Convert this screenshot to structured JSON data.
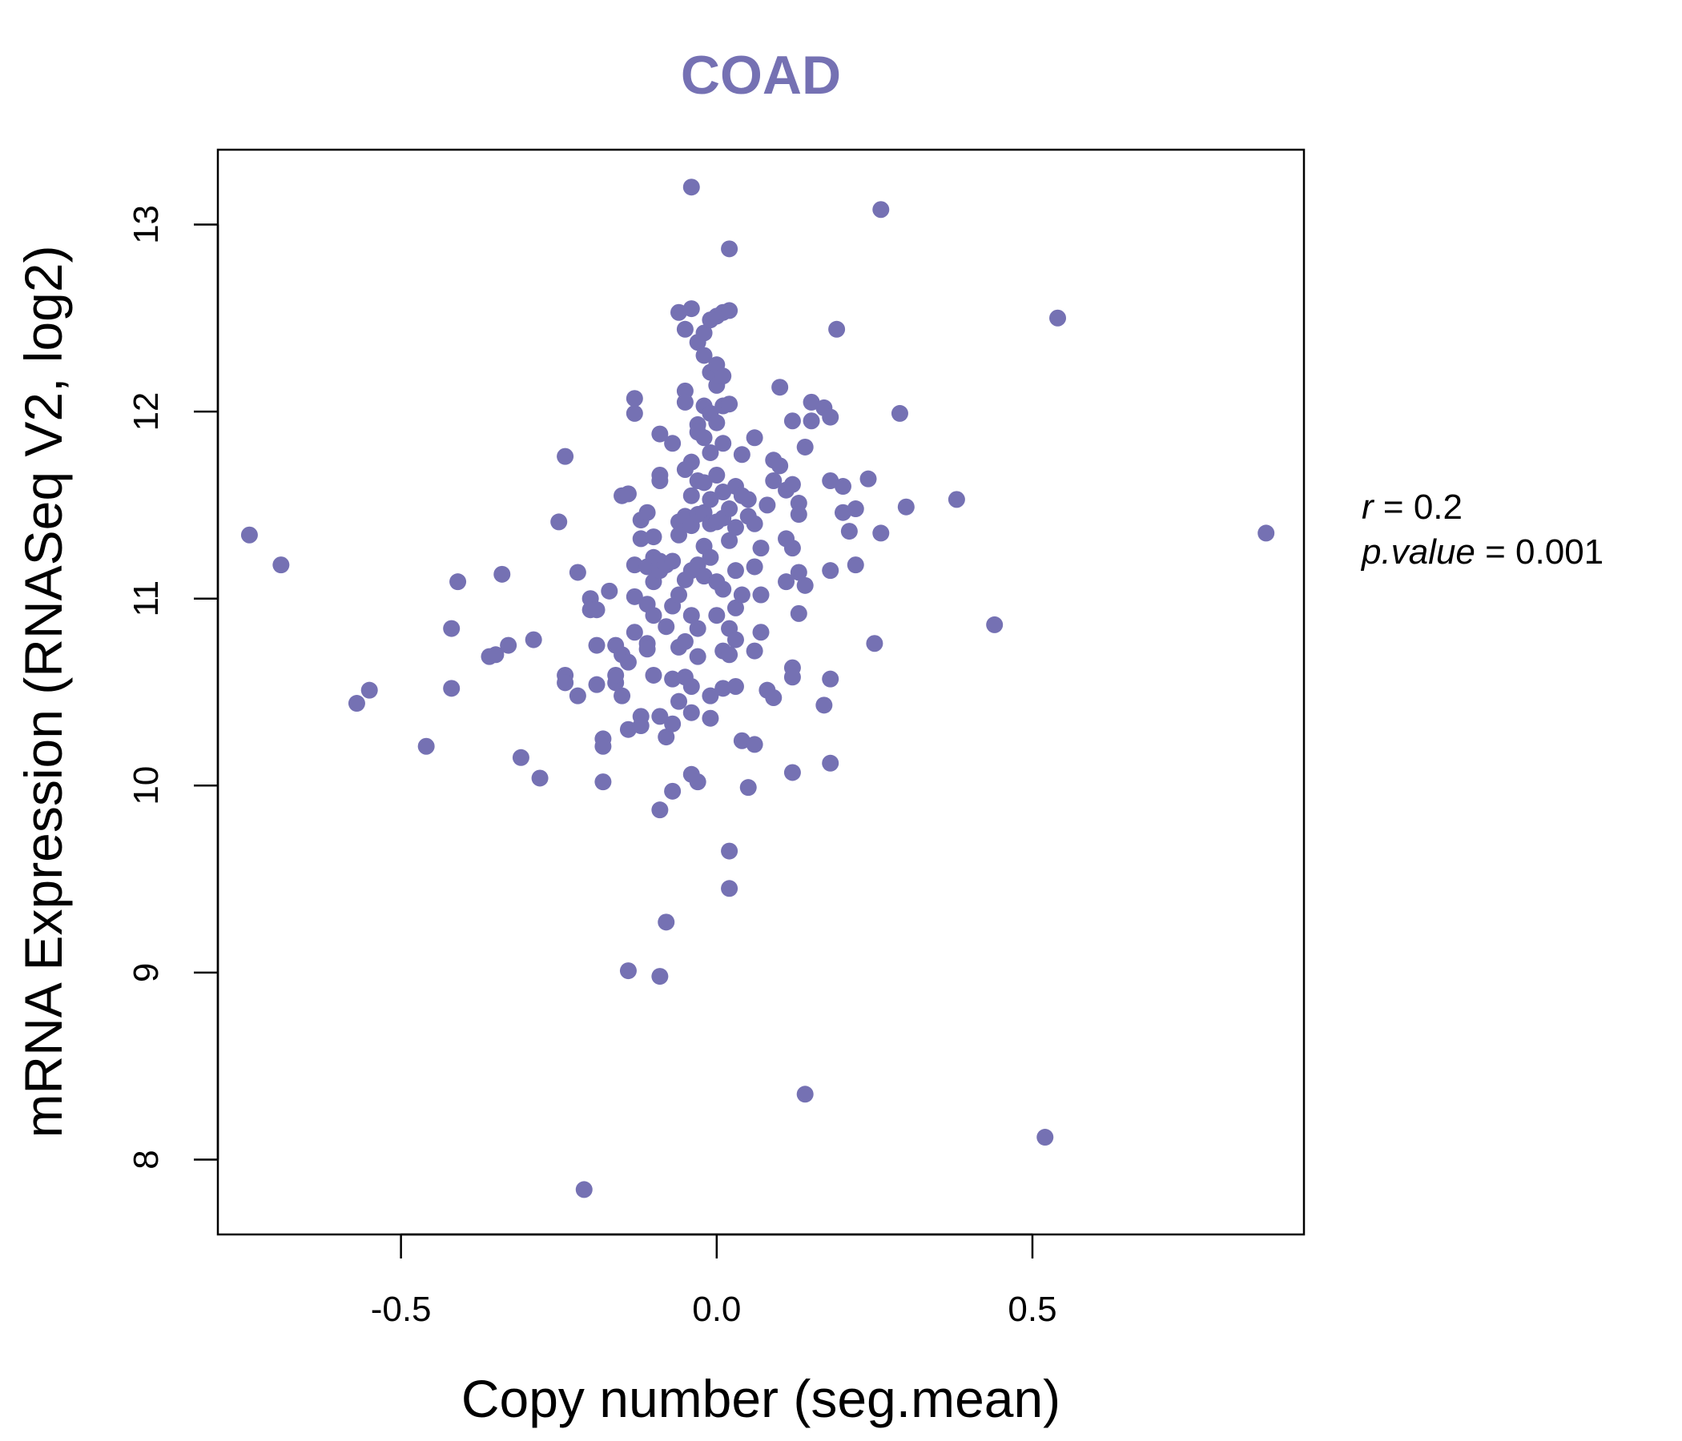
{
  "colors": {
    "point": "#7571B3",
    "title": "#7571B3",
    "axis": "#000000",
    "text": "#000000"
  },
  "chart_data": {
    "type": "scatter",
    "title": "COAD",
    "xlabel": "Copy number (seg.mean)",
    "ylabel": "mRNA Expression (RNASeq V2, log2)",
    "xlim": [
      -0.79,
      0.93
    ],
    "ylim": [
      7.6,
      13.4
    ],
    "xticks": [
      -0.5,
      0.0,
      0.5
    ],
    "xtick_labels": [
      "-0.5",
      "0.0",
      "0.5"
    ],
    "yticks": [
      8,
      9,
      10,
      11,
      12,
      13
    ],
    "ytick_labels": [
      "8",
      "9",
      "10",
      "11",
      "12",
      "13"
    ],
    "stats": {
      "r_label": "r",
      "r_value": "0.2",
      "p_label": "p.value",
      "p_value": "0.001"
    },
    "points": [
      [
        -0.74,
        11.34
      ],
      [
        -0.69,
        11.18
      ],
      [
        -0.57,
        10.44
      ],
      [
        -0.55,
        10.51
      ],
      [
        -0.46,
        10.21
      ],
      [
        -0.42,
        10.52
      ],
      [
        -0.42,
        10.84
      ],
      [
        -0.41,
        11.09
      ],
      [
        -0.36,
        10.69
      ],
      [
        -0.35,
        10.7
      ],
      [
        -0.34,
        11.13
      ],
      [
        -0.33,
        10.75
      ],
      [
        -0.31,
        10.15
      ],
      [
        -0.29,
        10.78
      ],
      [
        -0.28,
        10.04
      ],
      [
        -0.25,
        11.41
      ],
      [
        -0.24,
        11.76
      ],
      [
        -0.24,
        10.59
      ],
      [
        -0.24,
        10.55
      ],
      [
        -0.22,
        11.14
      ],
      [
        -0.22,
        10.48
      ],
      [
        -0.21,
        7.84
      ],
      [
        -0.2,
        11.0
      ],
      [
        -0.2,
        10.94
      ],
      [
        -0.19,
        10.94
      ],
      [
        -0.19,
        10.75
      ],
      [
        -0.19,
        10.54
      ],
      [
        -0.18,
        10.25
      ],
      [
        -0.18,
        10.21
      ],
      [
        -0.18,
        10.02
      ],
      [
        -0.17,
        11.04
      ],
      [
        -0.16,
        10.75
      ],
      [
        -0.16,
        10.55
      ],
      [
        -0.16,
        10.59
      ],
      [
        -0.15,
        11.55
      ],
      [
        -0.15,
        10.7
      ],
      [
        -0.15,
        10.48
      ],
      [
        -0.14,
        11.56
      ],
      [
        -0.14,
        10.66
      ],
      [
        -0.14,
        10.3
      ],
      [
        -0.14,
        9.01
      ],
      [
        -0.13,
        12.07
      ],
      [
        -0.13,
        11.99
      ],
      [
        -0.13,
        11.18
      ],
      [
        -0.13,
        11.01
      ],
      [
        -0.13,
        10.82
      ],
      [
        -0.12,
        11.42
      ],
      [
        -0.12,
        11.32
      ],
      [
        -0.12,
        10.37
      ],
      [
        -0.12,
        10.32
      ],
      [
        -0.11,
        11.46
      ],
      [
        -0.11,
        11.17
      ],
      [
        -0.11,
        10.97
      ],
      [
        -0.11,
        10.76
      ],
      [
        -0.11,
        10.73
      ],
      [
        -0.1,
        11.33
      ],
      [
        -0.1,
        11.22
      ],
      [
        -0.1,
        11.09
      ],
      [
        -0.1,
        10.91
      ],
      [
        -0.1,
        10.59
      ],
      [
        -0.09,
        11.88
      ],
      [
        -0.09,
        11.66
      ],
      [
        -0.09,
        11.63
      ],
      [
        -0.09,
        11.2
      ],
      [
        -0.09,
        11.15
      ],
      [
        -0.09,
        10.37
      ],
      [
        -0.09,
        9.87
      ],
      [
        -0.09,
        8.98
      ],
      [
        -0.08,
        11.18
      ],
      [
        -0.08,
        10.85
      ],
      [
        -0.08,
        10.26
      ],
      [
        -0.08,
        9.27
      ],
      [
        -0.07,
        11.83
      ],
      [
        -0.07,
        11.2
      ],
      [
        -0.07,
        10.96
      ],
      [
        -0.07,
        10.57
      ],
      [
        -0.07,
        10.33
      ],
      [
        -0.07,
        9.97
      ],
      [
        -0.06,
        12.53
      ],
      [
        -0.06,
        11.41
      ],
      [
        -0.06,
        11.34
      ],
      [
        -0.06,
        11.02
      ],
      [
        -0.06,
        10.74
      ],
      [
        -0.06,
        10.45
      ],
      [
        -0.05,
        12.44
      ],
      [
        -0.05,
        12.11
      ],
      [
        -0.05,
        12.05
      ],
      [
        -0.05,
        11.69
      ],
      [
        -0.05,
        11.44
      ],
      [
        -0.05,
        11.1
      ],
      [
        -0.05,
        10.77
      ],
      [
        -0.05,
        10.58
      ],
      [
        -0.04,
        12.55
      ],
      [
        -0.04,
        13.2
      ],
      [
        -0.04,
        11.73
      ],
      [
        -0.04,
        11.55
      ],
      [
        -0.04,
        11.39
      ],
      [
        -0.04,
        11.15
      ],
      [
        -0.04,
        10.91
      ],
      [
        -0.04,
        10.53
      ],
      [
        -0.04,
        10.39
      ],
      [
        -0.04,
        10.06
      ],
      [
        -0.03,
        12.37
      ],
      [
        -0.03,
        11.93
      ],
      [
        -0.03,
        11.89
      ],
      [
        -0.03,
        11.63
      ],
      [
        -0.03,
        11.45
      ],
      [
        -0.03,
        11.18
      ],
      [
        -0.03,
        10.84
      ],
      [
        -0.03,
        10.69
      ],
      [
        -0.03,
        10.02
      ],
      [
        -0.02,
        12.42
      ],
      [
        -0.02,
        12.3
      ],
      [
        -0.02,
        12.03
      ],
      [
        -0.02,
        11.86
      ],
      [
        -0.02,
        11.62
      ],
      [
        -0.02,
        11.46
      ],
      [
        -0.02,
        11.28
      ],
      [
        -0.02,
        11.12
      ],
      [
        -0.01,
        12.49
      ],
      [
        -0.01,
        12.21
      ],
      [
        -0.01,
        11.99
      ],
      [
        -0.01,
        11.78
      ],
      [
        -0.01,
        11.53
      ],
      [
        -0.01,
        11.4
      ],
      [
        -0.01,
        11.22
      ],
      [
        -0.01,
        10.48
      ],
      [
        -0.01,
        10.36
      ],
      [
        0.0,
        12.51
      ],
      [
        0.0,
        12.25
      ],
      [
        0.0,
        12.14
      ],
      [
        0.0,
        11.94
      ],
      [
        0.0,
        11.66
      ],
      [
        0.0,
        11.41
      ],
      [
        0.0,
        11.09
      ],
      [
        0.0,
        10.91
      ],
      [
        0.01,
        12.53
      ],
      [
        0.01,
        12.19
      ],
      [
        0.01,
        12.03
      ],
      [
        0.01,
        11.83
      ],
      [
        0.01,
        11.57
      ],
      [
        0.01,
        11.43
      ],
      [
        0.01,
        11.05
      ],
      [
        0.01,
        10.72
      ],
      [
        0.01,
        10.52
      ],
      [
        0.02,
        12.54
      ],
      [
        0.02,
        12.87
      ],
      [
        0.02,
        12.04
      ],
      [
        0.02,
        11.48
      ],
      [
        0.02,
        11.31
      ],
      [
        0.02,
        10.84
      ],
      [
        0.02,
        10.7
      ],
      [
        0.02,
        9.65
      ],
      [
        0.02,
        9.45
      ],
      [
        0.03,
        11.6
      ],
      [
        0.03,
        11.38
      ],
      [
        0.03,
        11.15
      ],
      [
        0.03,
        10.95
      ],
      [
        0.03,
        10.78
      ],
      [
        0.03,
        10.53
      ],
      [
        0.04,
        11.77
      ],
      [
        0.04,
        11.55
      ],
      [
        0.04,
        11.02
      ],
      [
        0.04,
        10.24
      ],
      [
        0.05,
        11.53
      ],
      [
        0.05,
        11.44
      ],
      [
        0.05,
        9.99
      ],
      [
        0.06,
        11.86
      ],
      [
        0.06,
        11.4
      ],
      [
        0.06,
        11.17
      ],
      [
        0.06,
        10.72
      ],
      [
        0.06,
        10.22
      ],
      [
        0.07,
        11.27
      ],
      [
        0.07,
        11.02
      ],
      [
        0.07,
        10.82
      ],
      [
        0.08,
        11.5
      ],
      [
        0.08,
        10.51
      ],
      [
        0.09,
        11.74
      ],
      [
        0.09,
        11.63
      ],
      [
        0.09,
        10.47
      ],
      [
        0.1,
        12.13
      ],
      [
        0.1,
        11.71
      ],
      [
        0.11,
        11.58
      ],
      [
        0.11,
        11.32
      ],
      [
        0.11,
        11.09
      ],
      [
        0.12,
        11.95
      ],
      [
        0.12,
        11.61
      ],
      [
        0.12,
        11.27
      ],
      [
        0.12,
        10.63
      ],
      [
        0.12,
        10.58
      ],
      [
        0.12,
        10.07
      ],
      [
        0.13,
        11.51
      ],
      [
        0.13,
        11.45
      ],
      [
        0.13,
        11.14
      ],
      [
        0.13,
        10.92
      ],
      [
        0.14,
        11.81
      ],
      [
        0.14,
        11.07
      ],
      [
        0.14,
        8.35
      ],
      [
        0.15,
        12.05
      ],
      [
        0.15,
        11.95
      ],
      [
        0.17,
        12.02
      ],
      [
        0.17,
        10.43
      ],
      [
        0.18,
        11.97
      ],
      [
        0.18,
        11.63
      ],
      [
        0.18,
        11.15
      ],
      [
        0.18,
        10.57
      ],
      [
        0.18,
        10.12
      ],
      [
        0.19,
        12.44
      ],
      [
        0.2,
        11.6
      ],
      [
        0.2,
        11.46
      ],
      [
        0.21,
        11.36
      ],
      [
        0.22,
        11.48
      ],
      [
        0.22,
        11.18
      ],
      [
        0.24,
        11.64
      ],
      [
        0.25,
        10.76
      ],
      [
        0.26,
        13.08
      ],
      [
        0.26,
        11.35
      ],
      [
        0.29,
        11.99
      ],
      [
        0.3,
        11.49
      ],
      [
        0.38,
        11.53
      ],
      [
        0.44,
        10.86
      ],
      [
        0.52,
        8.12
      ],
      [
        0.54,
        12.5
      ],
      [
        0.87,
        11.35
      ]
    ]
  }
}
